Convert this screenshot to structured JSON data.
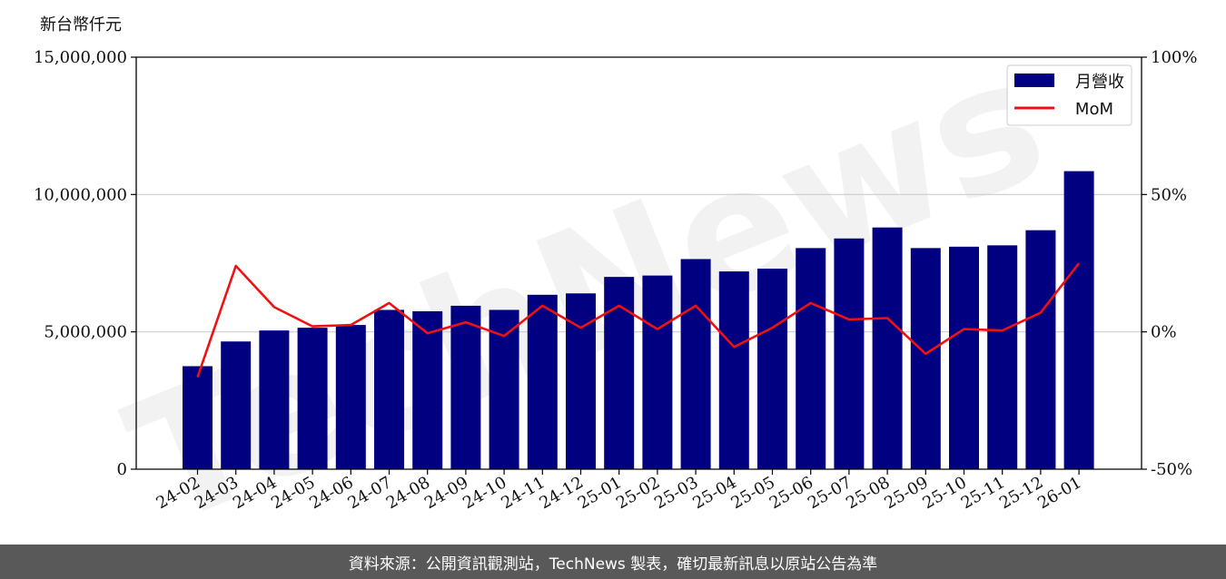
{
  "chart_data": {
    "type": "bar",
    "y_unit_label": "新台幣仟元",
    "categories": [
      "24-02",
      "24-03",
      "24-04",
      "24-05",
      "24-06",
      "24-07",
      "24-08",
      "24-09",
      "24-10",
      "24-11",
      "24-12",
      "25-01",
      "25-02",
      "25-03",
      "25-04",
      "25-05",
      "25-06",
      "25-07",
      "25-08",
      "25-09",
      "25-10",
      "25-11",
      "25-12",
      "26-01"
    ],
    "series": [
      {
        "name": "月營收",
        "type": "bar",
        "axis": "left",
        "color": "#000080",
        "values": [
          3750000,
          4650000,
          5050000,
          5150000,
          5250000,
          5800000,
          5750000,
          5950000,
          5800000,
          6350000,
          6400000,
          7000000,
          7050000,
          7650000,
          7200000,
          7300000,
          8050000,
          8400000,
          8800000,
          8050000,
          8100000,
          8150000,
          8700000,
          10850000
        ]
      },
      {
        "name": "MoM",
        "type": "line",
        "axis": "right",
        "color": "#ee1111",
        "values": [
          -16.5,
          24,
          9,
          2,
          2.5,
          10.5,
          -0.5,
          3.5,
          -1.5,
          9.5,
          1.5,
          9.5,
          1,
          9.5,
          -5.5,
          1.5,
          10.5,
          4.5,
          5,
          -8,
          1,
          0.5,
          7,
          25
        ]
      }
    ],
    "y_left": {
      "lim": [
        0,
        15000000
      ],
      "ticks": [
        0,
        5000000,
        10000000,
        15000000
      ],
      "tick_labels": [
        "0",
        "5,000,000",
        "10,000,000",
        "15,000,000"
      ]
    },
    "y_right": {
      "lim": [
        -50,
        100
      ],
      "ticks": [
        -50,
        0,
        50,
        100
      ],
      "tick_labels": [
        "-50%",
        "0%",
        "50%",
        "100%"
      ]
    },
    "grid": true,
    "legend_position": "top-right",
    "watermark": "TechNews"
  },
  "footer_text": "資料來源：公開資訊觀測站，TechNews 製表，確切最新訊息以原站公告為準"
}
